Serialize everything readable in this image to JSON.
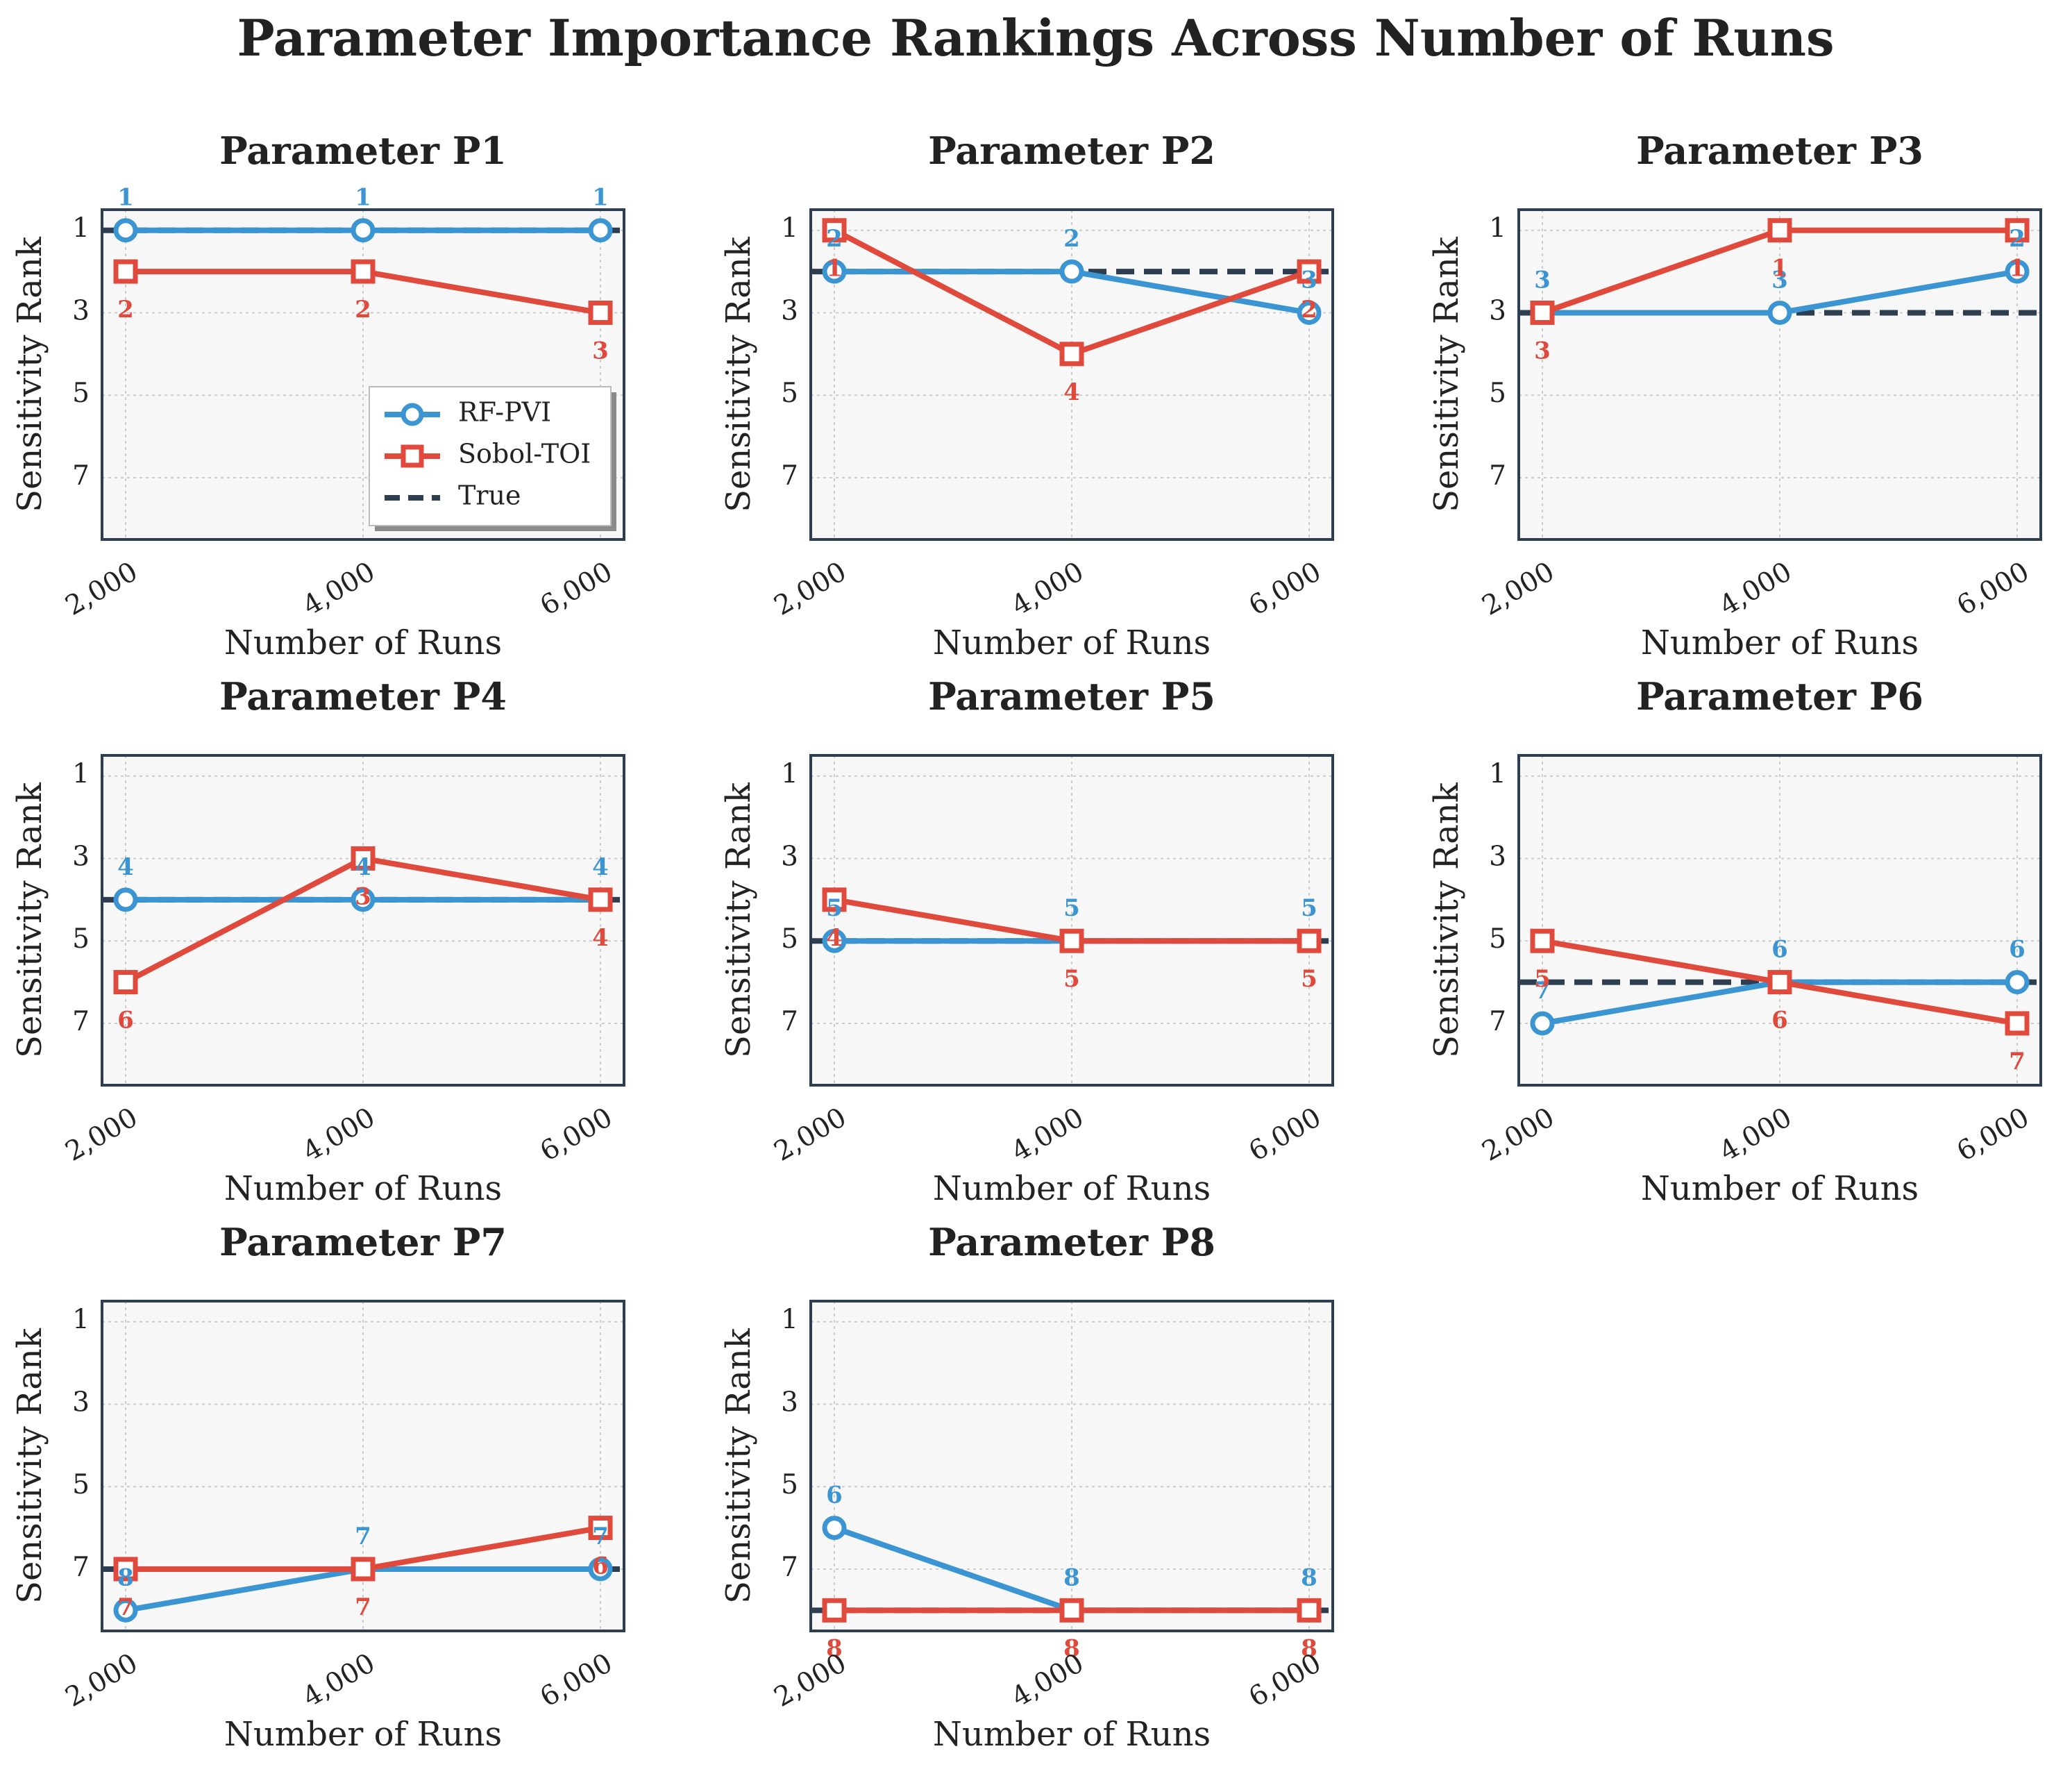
{
  "title": "Parameter Importance Rankings Across Number of Runs",
  "colors": {
    "rf": "#3b95d3",
    "sobol": "#e04a3c",
    "true": "#2c3e50",
    "panel_bg": "#f7f7f7",
    "frame": "#2c3e50",
    "grid": "#cccccc"
  },
  "chart_data": {
    "type": "line",
    "x": [
      2000,
      4000,
      6000
    ],
    "x_ticks": [
      "2,000",
      "4,000",
      "6,000"
    ],
    "y_ticks": [
      1,
      3,
      5,
      7
    ],
    "ylim": [
      8.5,
      0.5
    ],
    "y_inverted": true,
    "xlabel": "Number of Runs",
    "ylabel": "Sensitivity Rank",
    "grid": true,
    "legend": {
      "location": "lower right of panel P1",
      "entries": [
        "RF-PVI",
        "Sobol-TOI",
        "True"
      ]
    },
    "panels": [
      {
        "title": "Parameter P1",
        "rf": [
          1,
          1,
          1
        ],
        "sobol": [
          2,
          2,
          3
        ],
        "true": 1
      },
      {
        "title": "Parameter P2",
        "rf": [
          2,
          2,
          3
        ],
        "sobol": [
          1,
          4,
          2
        ],
        "true": 2
      },
      {
        "title": "Parameter P3",
        "rf": [
          3,
          3,
          2
        ],
        "sobol": [
          3,
          1,
          1
        ],
        "true": 3
      },
      {
        "title": "Parameter P4",
        "rf": [
          4,
          4,
          4
        ],
        "sobol": [
          6,
          3,
          4
        ],
        "true": 4
      },
      {
        "title": "Parameter P5",
        "rf": [
          5,
          5,
          5
        ],
        "sobol": [
          4,
          5,
          5
        ],
        "true": 5
      },
      {
        "title": "Parameter P6",
        "rf": [
          7,
          6,
          6
        ],
        "sobol": [
          5,
          6,
          7
        ],
        "true": 6
      },
      {
        "title": "Parameter P7",
        "rf": [
          8,
          7,
          7
        ],
        "sobol": [
          7,
          7,
          6
        ],
        "true": 7
      },
      {
        "title": "Parameter P8",
        "rf": [
          6,
          8,
          8
        ],
        "sobol": [
          8,
          8,
          8
        ],
        "true": 8
      }
    ]
  }
}
